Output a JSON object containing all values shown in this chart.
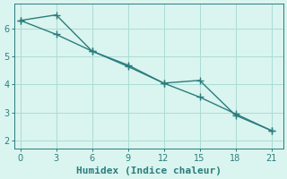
{
  "line1_x": [
    0,
    3,
    6,
    9,
    12,
    15,
    18,
    21
  ],
  "line1_y": [
    6.3,
    6.5,
    5.2,
    4.7,
    4.05,
    4.15,
    2.9,
    2.35
  ],
  "line2_x": [
    0,
    3,
    6,
    9,
    12,
    15,
    18,
    21
  ],
  "line2_y": [
    6.3,
    5.8,
    5.2,
    4.65,
    4.05,
    3.55,
    2.95,
    2.35
  ],
  "line_color": "#2a7d7d",
  "background_color": "#daf4ef",
  "grid_color": "#aaddd5",
  "xlabel": "Humidex (Indice chaleur)",
  "xlim": [
    -0.5,
    22
  ],
  "ylim": [
    1.7,
    6.9
  ],
  "xticks": [
    0,
    3,
    6,
    9,
    12,
    15,
    18,
    21
  ],
  "yticks": [
    2,
    3,
    4,
    5,
    6
  ],
  "marker": "P",
  "markersize": 3.5,
  "linewidth": 1.0,
  "xlabel_fontsize": 8,
  "tick_fontsize": 7
}
